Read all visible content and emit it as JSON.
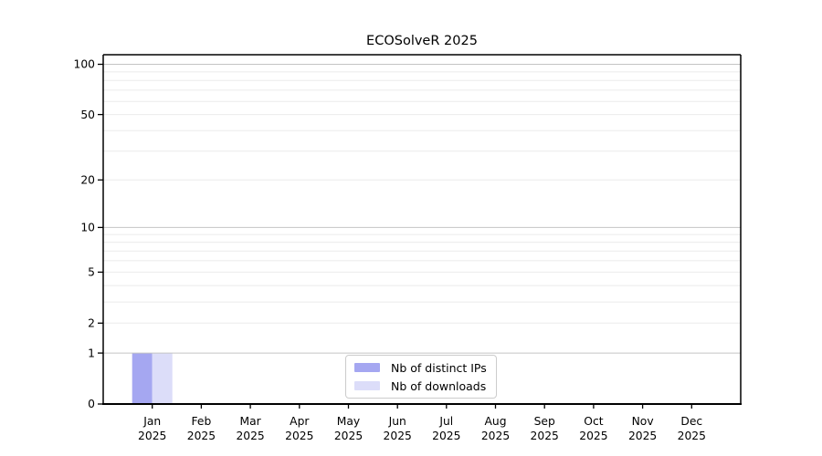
{
  "title": "ECOSolveR 2025",
  "colors": {
    "background": "#ffffff",
    "grid_major": "#c4c4c4",
    "grid_minor": "#ebebeb",
    "axis_line": "#000000",
    "tick_text": "#000000",
    "legend_border": "#cccccc"
  },
  "chart_data": {
    "type": "bar",
    "title": "ECOSolveR 2025",
    "categories": [
      "Jan",
      "Feb",
      "Mar",
      "Apr",
      "May",
      "Jun",
      "Jul",
      "Aug",
      "Sep",
      "Oct",
      "Nov",
      "Dec"
    ],
    "x_year_label": "2025",
    "series": [
      {
        "name": "Nb of distinct IPs",
        "color": "#a5a7f1",
        "values": [
          1,
          0,
          0,
          0,
          0,
          0,
          0,
          0,
          0,
          0,
          0,
          0
        ]
      },
      {
        "name": "Nb of downloads",
        "color": "#dcddf9",
        "values": [
          1,
          0,
          0,
          0,
          0,
          0,
          0,
          0,
          0,
          0,
          0,
          0
        ]
      }
    ],
    "xlabel": "",
    "ylabel": "",
    "y_scale": "log1p",
    "ylim": [
      0,
      114
    ],
    "y_ticks": [
      0,
      1,
      2,
      5,
      10,
      20,
      50,
      100
    ],
    "gridlines": {
      "major": [
        1,
        10,
        100
      ],
      "minor": [
        2,
        3,
        4,
        5,
        6,
        7,
        8,
        9,
        20,
        30,
        40,
        50,
        60,
        70,
        80,
        90
      ]
    },
    "grid": "on",
    "legend": {
      "position": "lower center"
    }
  }
}
